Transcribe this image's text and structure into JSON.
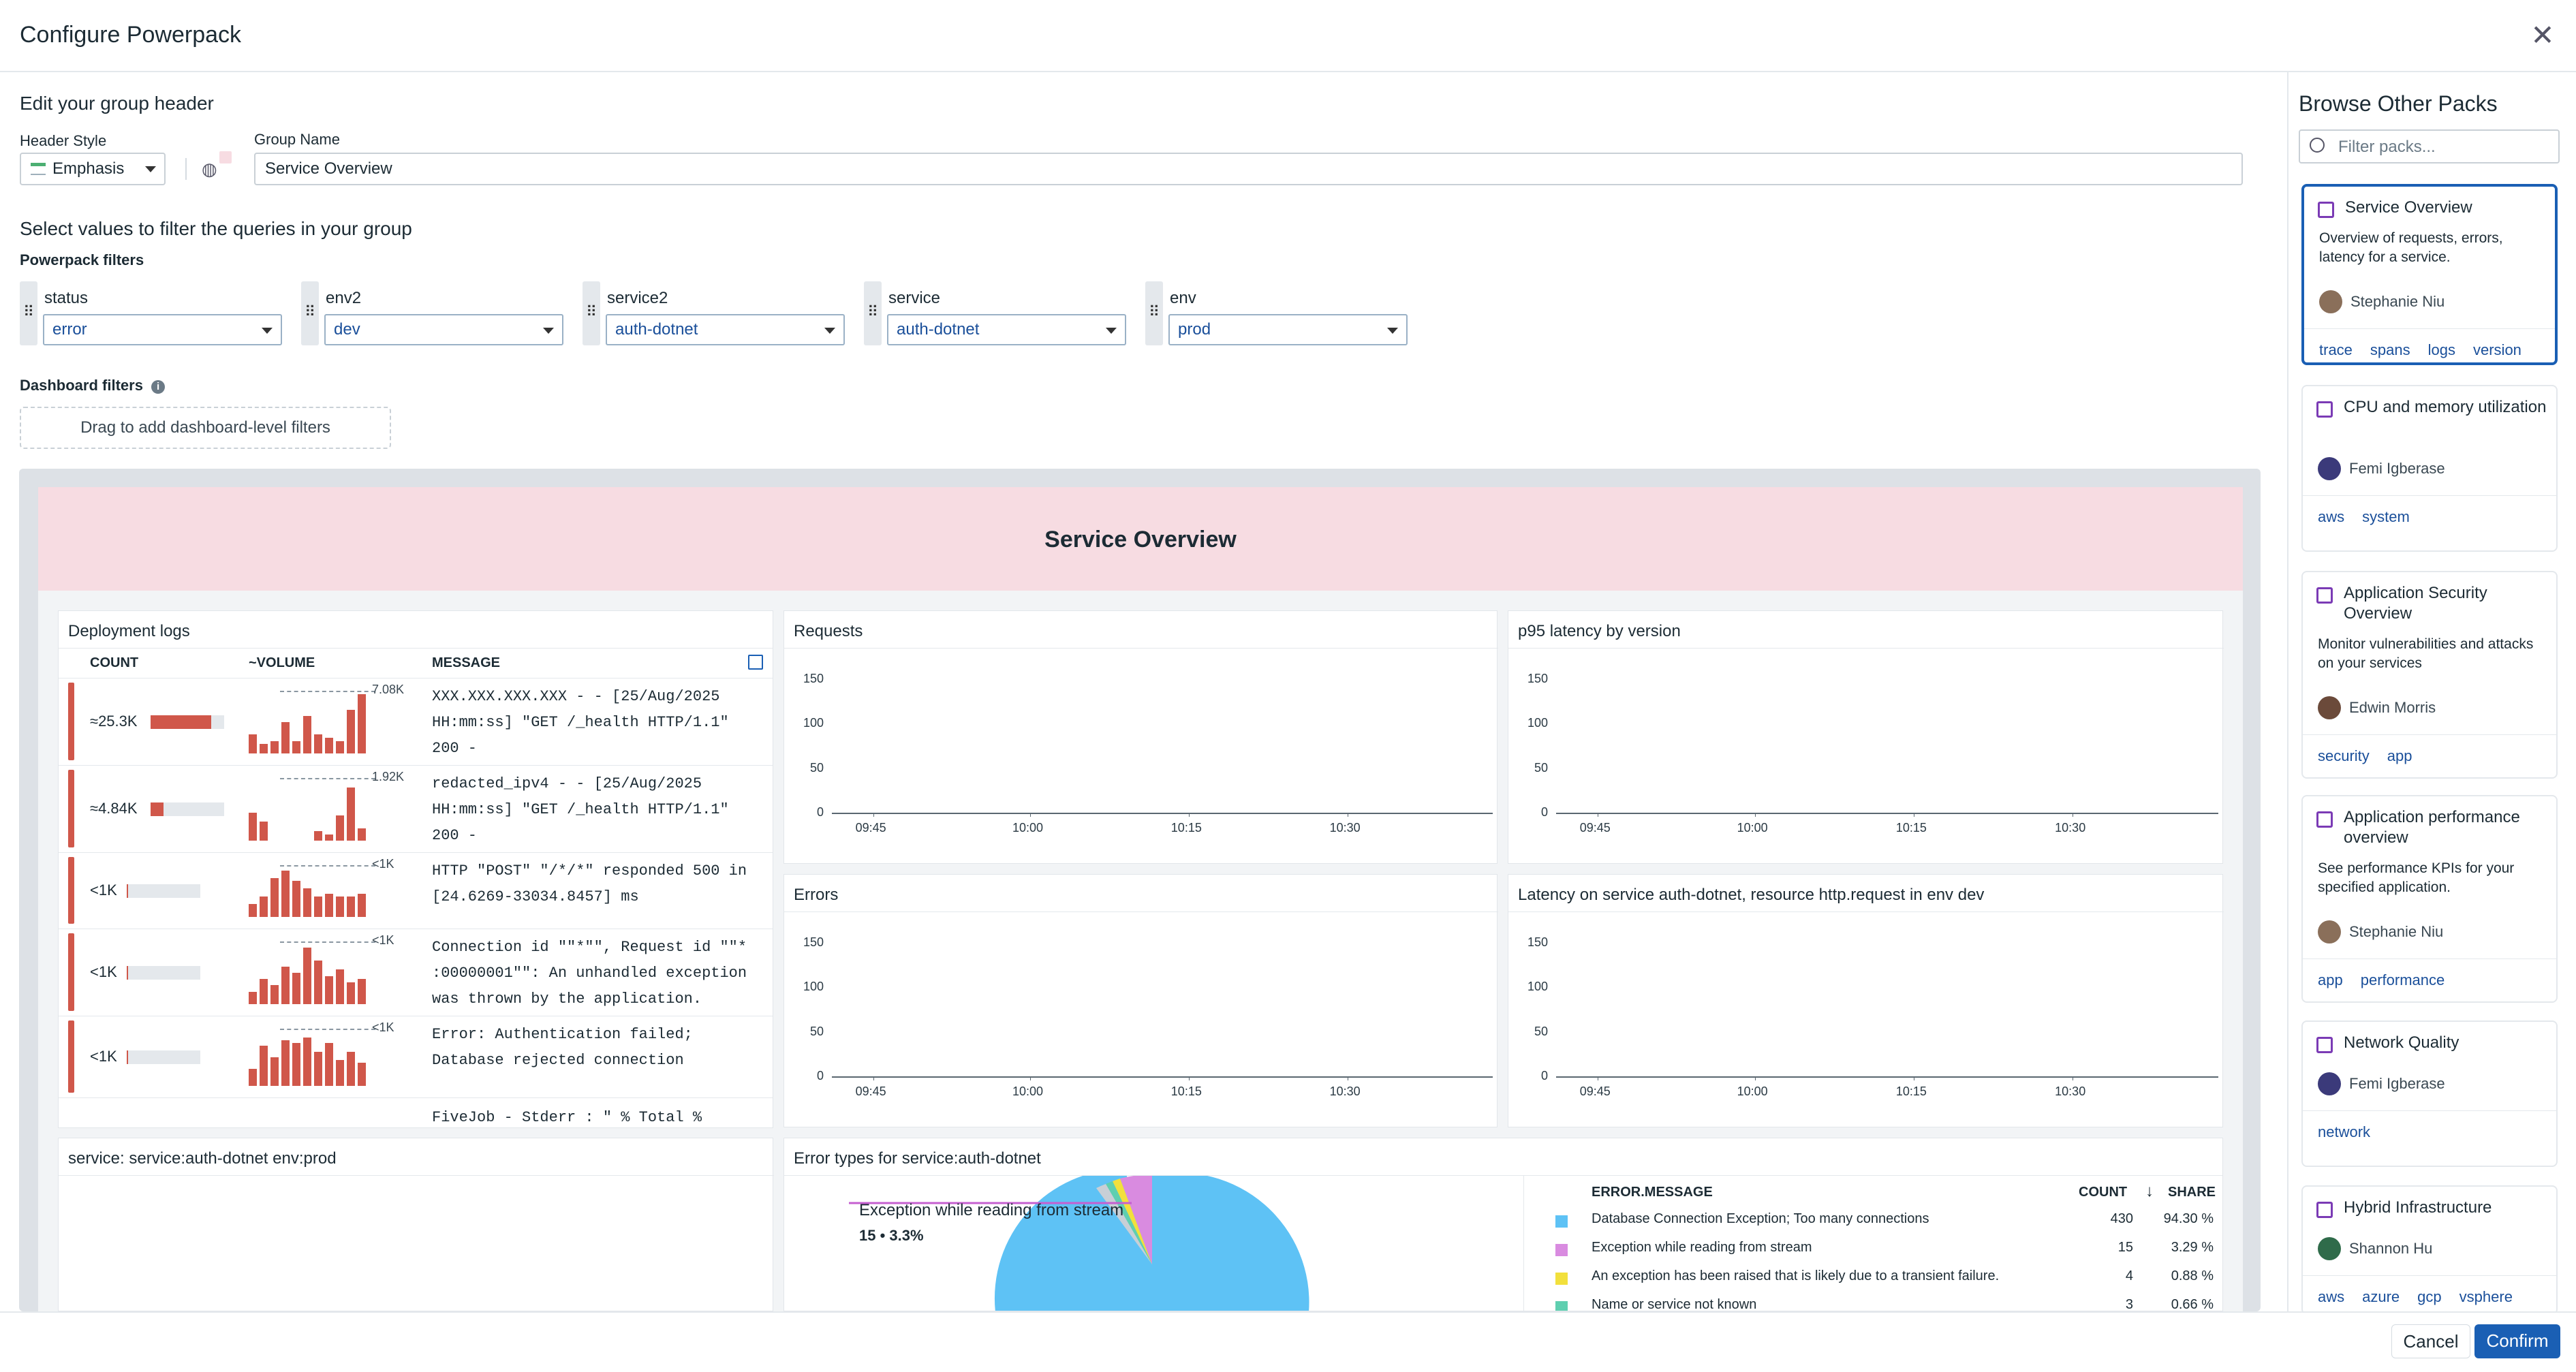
{
  "header": {
    "title": "Configure Powerpack",
    "close_icon": "close-icon"
  },
  "group_header": {
    "section_title": "Edit your group header",
    "style_label": "Header Style",
    "style_value": "Emphasis",
    "group_name_label": "Group Name",
    "group_name_value": "Service Overview"
  },
  "filters": {
    "section_title": "Select values to filter the queries in your group",
    "powerpack_label": "Powerpack filters",
    "items": [
      {
        "name": "status",
        "value": "error"
      },
      {
        "name": "env2",
        "value": "dev"
      },
      {
        "name": "service2",
        "value": "auth-dotnet"
      },
      {
        "name": "service",
        "value": "auth-dotnet"
      },
      {
        "name": "env",
        "value": "prod"
      }
    ],
    "dashboard_label": "Dashboard filters",
    "dashboard_drop": "Drag to add dashboard-level filters"
  },
  "preview": {
    "banner_title": "Service Overview",
    "deployment_logs": {
      "title": "Deployment logs",
      "columns": [
        "COUNT",
        "~VOLUME",
        "MESSAGE"
      ],
      "rows": [
        {
          "count": "≈25.3K",
          "peak": "7.08K",
          "msg": [
            "XXX.XXX.XXX.XXX - - [25/Aug/2025",
            "HH:mm:ss] \"GET /_health HTTP/1.1\"",
            "200 -"
          ],
          "bar": 0.82
        },
        {
          "count": "≈4.84K",
          "peak": "1.92K",
          "msg": [
            "redacted_ipv4 - - [25/Aug/2025",
            "HH:mm:ss] \"GET /_health HTTP/1.1\"",
            "200 -"
          ],
          "bar": 0.18
        },
        {
          "count": "<1K",
          "peak": "<1K",
          "msg": [
            "HTTP \"POST\" \"/*/*\" responded 500 in",
            "[24.6269-33034.8457] ms"
          ],
          "bar": 0.02
        },
        {
          "count": "<1K",
          "peak": "<1K",
          "msg": [
            "Connection id \"\"*\"\", Request id \"\"*",
            ":00000001\"\": An unhandled exception",
            "was thrown by the application."
          ],
          "bar": 0.02
        },
        {
          "count": "<1K",
          "peak": "<1K",
          "msg": [
            "Error: Authentication failed;",
            "Database rejected connection"
          ],
          "bar": 0.02
        },
        {
          "count": "",
          "peak": "",
          "msg": [
            "FiveJob - Stderr : \" % Total %"
          ],
          "bar": 0
        }
      ]
    },
    "requests": {
      "title": "Requests"
    },
    "p95": {
      "title": "p95 latency by version"
    },
    "errors": {
      "title": "Errors"
    },
    "latency": {
      "title": "Latency on service auth-dotnet, resource http.request in env dev"
    },
    "y_ticks": [
      "150",
      "100",
      "50",
      "0"
    ],
    "x_ticks": [
      "09:45",
      "10:00",
      "10:15",
      "10:30"
    ],
    "service_panel": {
      "title": "service: service:auth-dotnet env:prod"
    },
    "error_types": {
      "title": "Error types for service:auth-dotnet",
      "tooltip_title": "Exception while reading from stream",
      "tooltip_value": "15 • 3.3%",
      "columns": [
        "ERROR.MESSAGE",
        "COUNT",
        "SHARE"
      ],
      "rows": [
        {
          "color": "#5ec2f5",
          "msg": "Database Connection Exception; Too many connections",
          "count": "430",
          "share": "94.30 %"
        },
        {
          "color": "#d98be0",
          "msg": "Exception while reading from stream",
          "count": "15",
          "share": "3.29 %"
        },
        {
          "color": "#f2e03c",
          "msg": "An exception has been raised that is likely due to a transient failure.",
          "count": "4",
          "share": "0.88 %"
        },
        {
          "color": "#5fcfb0",
          "msg": "Name or service not known",
          "count": "3",
          "share": "0.66 %"
        }
      ]
    }
  },
  "browse": {
    "title": "Browse Other Packs",
    "search_placeholder": "Filter packs...",
    "packs": [
      {
        "title": "Service Overview",
        "desc": "Overview of requests, errors, latency for a service.",
        "author": "Stephanie Niu",
        "tags": [
          "trace",
          "spans",
          "logs",
          "version"
        ]
      },
      {
        "title": "CPU and memory utilization",
        "desc": "",
        "author": "Femi Igberase",
        "tags": [
          "aws",
          "system"
        ]
      },
      {
        "title": "Application Security Overview",
        "desc": "Monitor vulnerabilities and attacks on your services",
        "author": "Edwin Morris",
        "tags": [
          "security",
          "app"
        ]
      },
      {
        "title": "Application performance overview",
        "desc": "See performance KPIs for your specified application.",
        "author": "Stephanie Niu",
        "tags": [
          "app",
          "performance"
        ]
      },
      {
        "title": "Network Quality",
        "desc": "",
        "author": "Femi Igberase",
        "tags": [
          "network"
        ]
      },
      {
        "title": "Hybrid Infrastructure",
        "desc": "",
        "author": "Shannon Hu",
        "tags": [
          "aws",
          "azure",
          "gcp",
          "vsphere"
        ]
      }
    ]
  },
  "footer": {
    "cancel": "Cancel",
    "confirm": "Confirm"
  },
  "colors": {
    "accent": "#1a5fb4",
    "error_bar": "#d0574a",
    "banner": "#f7dce2"
  }
}
